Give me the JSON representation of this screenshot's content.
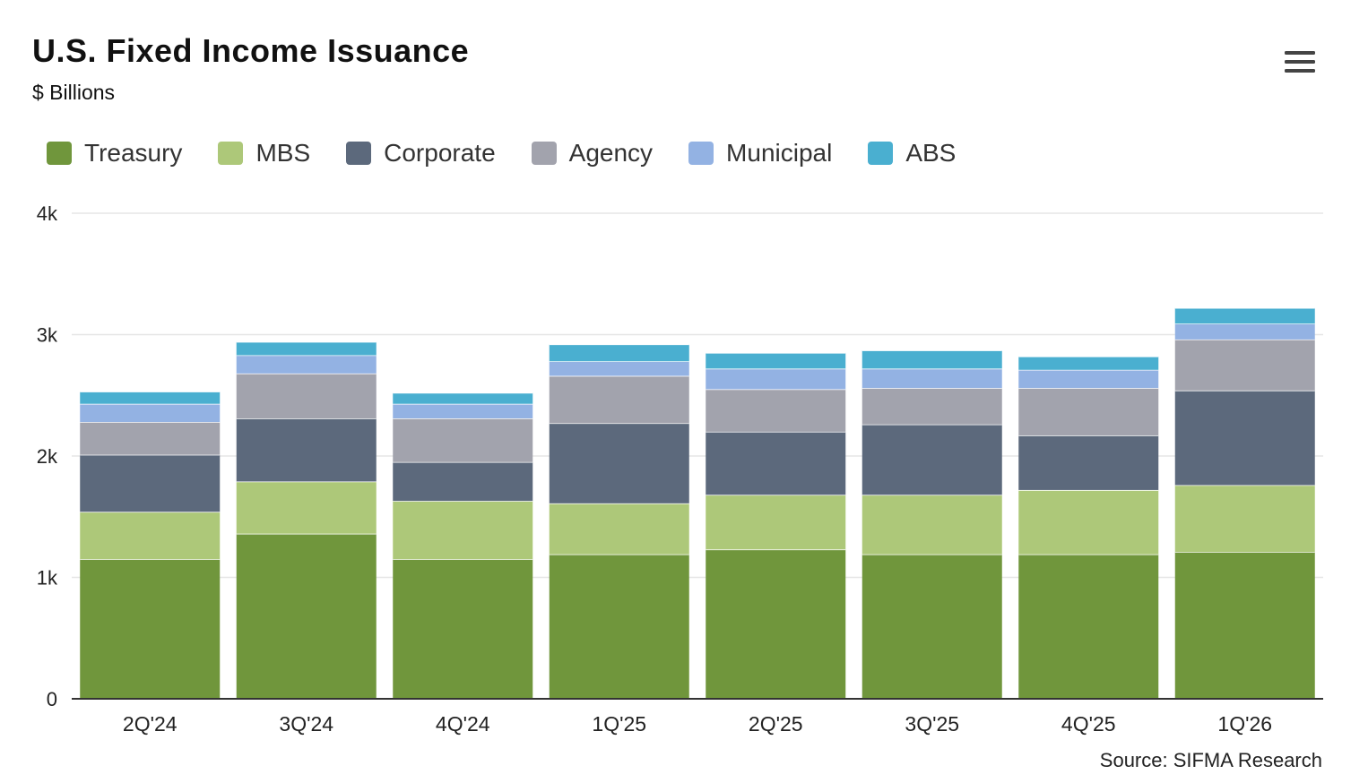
{
  "header": {
    "title": "U.S. Fixed Income Issuance",
    "subtitle": "$ Billions"
  },
  "menu": {
    "icon": "hamburger-menu-icon"
  },
  "footer": {
    "source": "Source: SIFMA Research"
  },
  "chart_data": {
    "type": "bar",
    "stacked": true,
    "title": "U.S. Fixed Income Issuance",
    "subtitle": "$ Billions",
    "xlabel": "",
    "ylabel": "",
    "ylim": [
      0,
      4000
    ],
    "yticks": [
      0,
      1000,
      2000,
      3000,
      4000
    ],
    "ytick_labels": [
      "0",
      "1k",
      "2k",
      "3k",
      "4k"
    ],
    "grid": true,
    "legend_position": "top-left",
    "categories": [
      "2Q'24",
      "3Q'24",
      "4Q'24",
      "1Q'25",
      "2Q'25",
      "3Q'25",
      "4Q'25",
      "1Q'26"
    ],
    "series": [
      {
        "name": "Treasury",
        "color": "#70963c",
        "values": [
          1150,
          1360,
          1150,
          1190,
          1230,
          1190,
          1190,
          1210
        ]
      },
      {
        "name": "MBS",
        "color": "#adc879",
        "values": [
          390,
          430,
          480,
          420,
          450,
          490,
          530,
          550
        ]
      },
      {
        "name": "Corporate",
        "color": "#5c697c",
        "values": [
          470,
          520,
          320,
          660,
          520,
          580,
          450,
          780
        ]
      },
      {
        "name": "Agency",
        "color": "#a2a3ad",
        "values": [
          270,
          370,
          360,
          390,
          350,
          300,
          390,
          420
        ]
      },
      {
        "name": "Municipal",
        "color": "#93b2e3",
        "values": [
          150,
          150,
          120,
          120,
          170,
          160,
          150,
          130
        ]
      },
      {
        "name": "ABS",
        "color": "#4aafd0",
        "values": [
          100,
          110,
          90,
          140,
          130,
          150,
          110,
          130
        ]
      }
    ]
  }
}
